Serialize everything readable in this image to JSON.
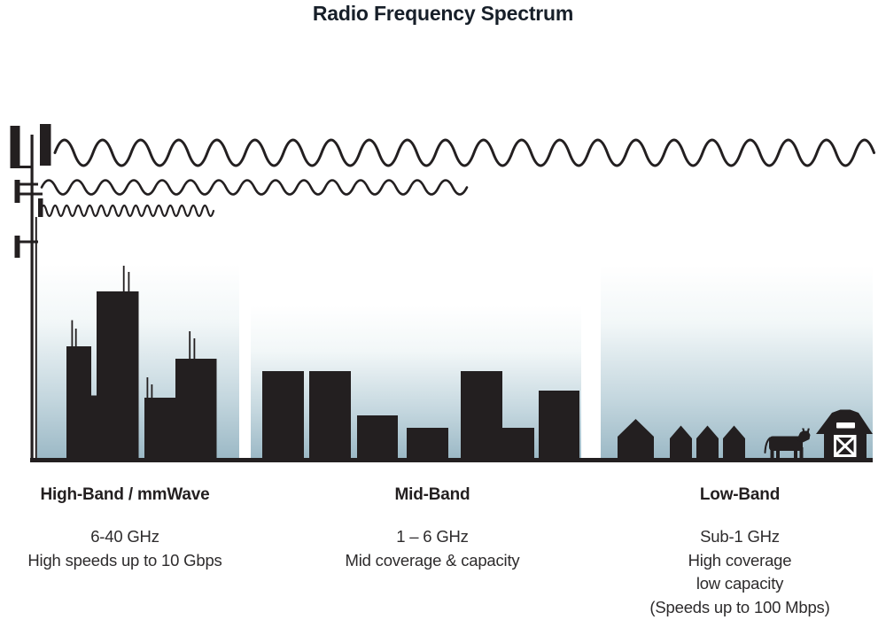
{
  "title": "Radio Frequency Spectrum",
  "bands": [
    {
      "id": "high-band",
      "label": "High-Band / mmWave",
      "lines": [
        "6-40 GHz",
        "High speeds up to 10 Gbps"
      ],
      "icon": "city-skyline",
      "wave": "short-wavelength-wave"
    },
    {
      "id": "mid-band",
      "label": "Mid-Band",
      "lines": [
        "1 – 6 GHz",
        "Mid coverage & capacity"
      ],
      "icon": "midrise-buildings",
      "wave": "medium-wavelength-wave"
    },
    {
      "id": "low-band",
      "label": "Low-Band",
      "lines": [
        "Sub-1 GHz",
        "High coverage",
        "low capacity",
        "(Speeds up to 100 Mbps)"
      ],
      "icon": "houses-cow-barn",
      "wave": "long-wavelength-wave"
    }
  ],
  "icons": [
    "cell-tower",
    "radio-waves",
    "city-skyline",
    "midrise-buildings",
    "houses",
    "cow",
    "barn"
  ],
  "colors": {
    "ink": "#231f20",
    "title_ink": "#171f29",
    "body_ink": "#2d2b2c",
    "sky_top": "#ffffff",
    "sky_upper": "#f2f7f8",
    "sky_lower": "#c3d6de",
    "sky_bottom": "#9cb9c6"
  }
}
